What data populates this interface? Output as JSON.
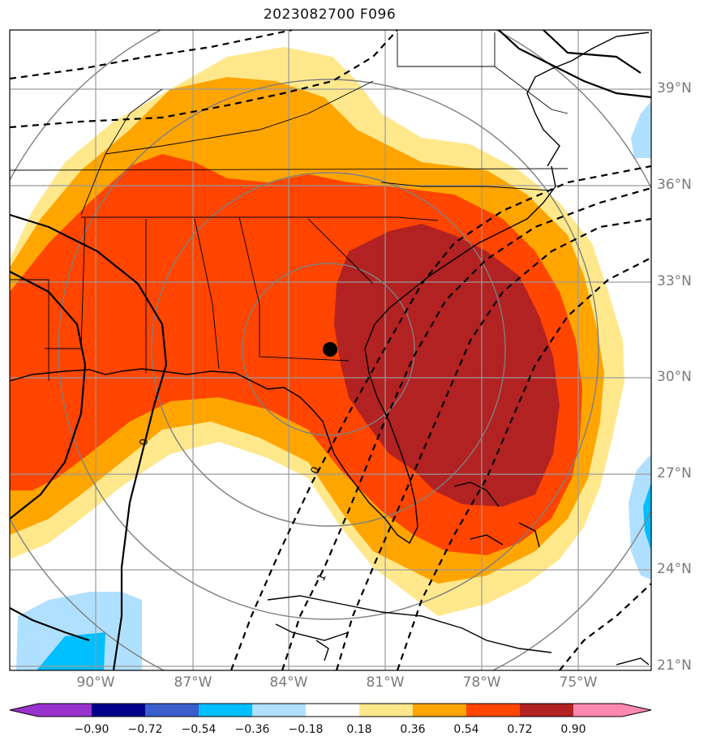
{
  "title": "2023082700 F096",
  "lat_labels": [
    "39°N",
    "36°N",
    "33°N",
    "30°N",
    "27°N",
    "24°N",
    "21°N"
  ],
  "lon_labels": [
    "90°W",
    "87°W",
    "84°W",
    "81°W",
    "78°W",
    "75°W"
  ],
  "contour_labels": [
    "0",
    "0",
    "1"
  ],
  "colorbar": {
    "ticks": [
      "−0.90",
      "−0.72",
      "−0.54",
      "−0.36",
      "−0.18",
      "0.18",
      "0.36",
      "0.54",
      "0.72",
      "0.90"
    ],
    "colors": [
      "#9932cc",
      "#00008b",
      "#3a5fcd",
      "#00bfff",
      "#b0e0ff",
      "#ffffff",
      "#ffe88c",
      "#ffa500",
      "#ff4500",
      "#b22222",
      "#ff88b0"
    ]
  },
  "fill_colors": {
    "light_yellow": "#ffe88c",
    "orange": "#ffa500",
    "red_orange": "#ff4500",
    "dark_red": "#b22222",
    "light_blue": "#b0e0ff",
    "sky_blue": "#00bfff"
  },
  "marker": "black-dot-storm-center"
}
